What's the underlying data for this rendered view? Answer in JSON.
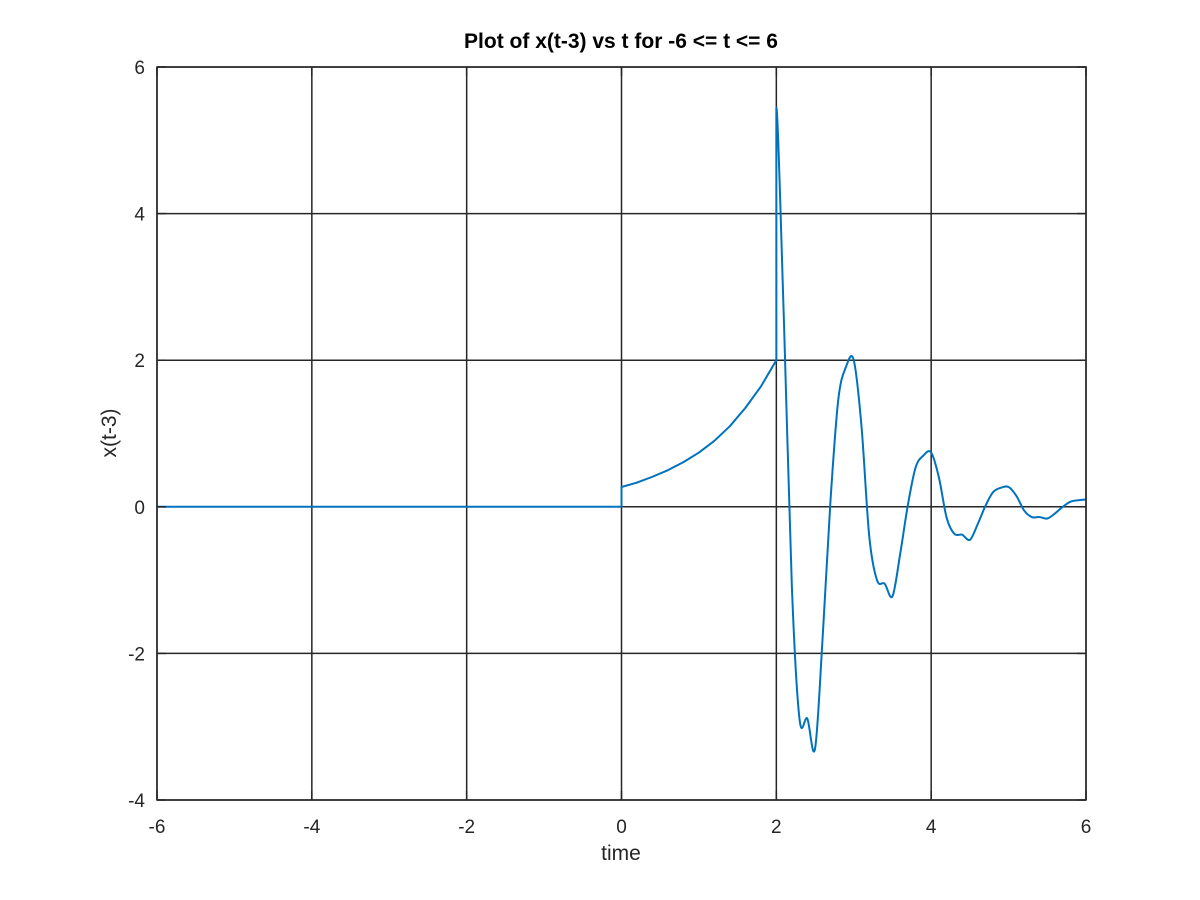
{
  "chart_data": {
    "type": "line",
    "title": "Plot of x(t-3) vs t for -6 <= t <= 6",
    "xlabel": "time",
    "ylabel": "x(t-3)",
    "xlim": [
      -6,
      6
    ],
    "ylim": [
      -4,
      6
    ],
    "xticks": [
      -6,
      -4,
      -2,
      0,
      2,
      4,
      6
    ],
    "yticks": [
      -4,
      -2,
      0,
      2,
      4,
      6
    ],
    "xtick_labels": [
      "-6",
      "-4",
      "-2",
      "0",
      "2",
      "4",
      "6"
    ],
    "ytick_labels": [
      "-4",
      "-2",
      "0",
      "2",
      "4",
      "6"
    ],
    "grid": true,
    "legend": "none",
    "line_color": "#0072bd",
    "grid_color": "#262626",
    "series": [
      {
        "x": [
          -6,
          0,
          0,
          0.2,
          0.4,
          0.6,
          0.8,
          1.0,
          1.2,
          1.4,
          1.6,
          1.8,
          2.0,
          2.0,
          2.1,
          2.2,
          2.3,
          2.4,
          2.5,
          2.6,
          2.7,
          2.8,
          2.9,
          3.0,
          3.1,
          3.2,
          3.3,
          3.4,
          3.5,
          3.6,
          3.7,
          3.8,
          3.9,
          4.0,
          4.1,
          4.2,
          4.3,
          4.4,
          4.5,
          4.6,
          4.7,
          4.8,
          4.9,
          5.0,
          5.1,
          5.2,
          5.3,
          5.4,
          5.5,
          5.6,
          5.7,
          5.8,
          5.9,
          6.0
        ],
        "y": [
          0,
          0,
          0.27,
          0.33,
          0.41,
          0.5,
          0.61,
          0.74,
          0.9,
          1.1,
          1.35,
          1.64,
          2.0,
          5.44,
          2.47,
          -1.07,
          -2.9,
          -2.89,
          -3.3,
          -1.75,
          0.09,
          1.46,
          1.91,
          2.0,
          1.1,
          -0.4,
          -1.0,
          -1.05,
          -1.22,
          -0.64,
          0.03,
          0.54,
          0.7,
          0.74,
          0.4,
          -0.15,
          -0.37,
          -0.38,
          -0.45,
          -0.24,
          0.01,
          0.2,
          0.26,
          0.27,
          0.15,
          -0.05,
          -0.14,
          -0.14,
          -0.16,
          -0.09,
          0.0,
          0.07,
          0.09,
          0.1
        ]
      }
    ]
  }
}
